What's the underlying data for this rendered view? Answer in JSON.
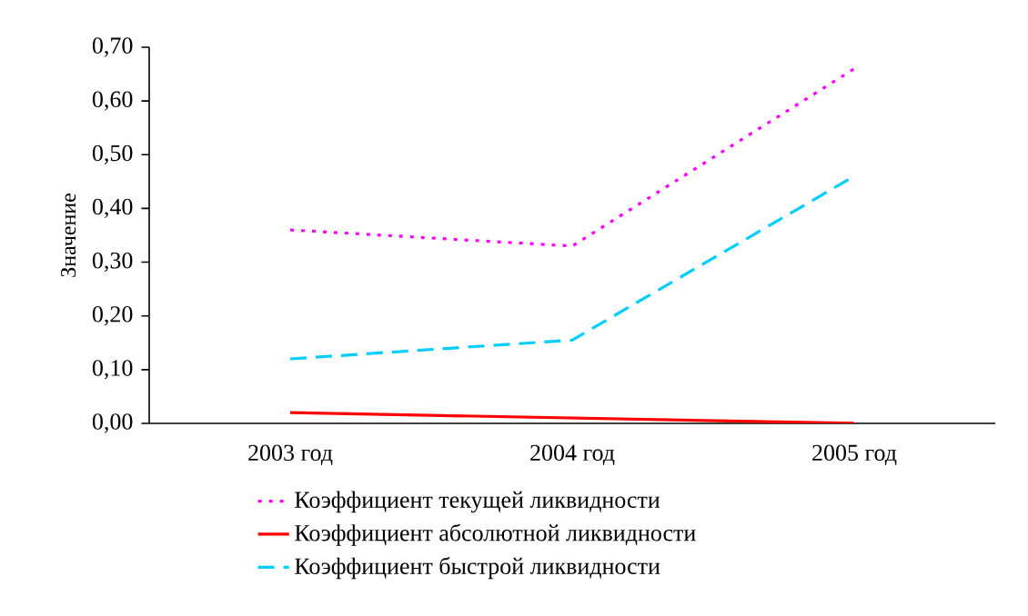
{
  "chart_data": {
    "type": "line",
    "ylabel": "Значение",
    "categories": [
      "2003 год",
      "2004 год",
      "2005 год"
    ],
    "series": [
      {
        "name": "Коэффициент текущей ликвидности",
        "color": "#ff00ff",
        "line_style": "dotted",
        "values": [
          0.36,
          0.33,
          0.66
        ]
      },
      {
        "name": "Коэффициент абсолютной ликвидности",
        "color": "#ff0000",
        "line_style": "solid",
        "values": [
          0.02,
          0.01,
          0.0
        ]
      },
      {
        "name": "Коэффициент быстрой ликвидности",
        "color": "#00ccff",
        "line_style": "dashed",
        "values": [
          0.12,
          0.155,
          0.46
        ]
      }
    ],
    "ylim": [
      0,
      0.7
    ],
    "yticks": [
      {
        "value": 0,
        "label": "0,00"
      },
      {
        "value": 0.1,
        "label": "0,10"
      },
      {
        "value": 0.2,
        "label": "0,20"
      },
      {
        "value": 0.3,
        "label": "0,30"
      },
      {
        "value": 0.4,
        "label": "0,40"
      },
      {
        "value": 0.5,
        "label": "0,50"
      },
      {
        "value": 0.6,
        "label": "0,60"
      },
      {
        "value": 0.7,
        "label": "0,70"
      }
    ],
    "grid": false,
    "legend": "bottom"
  }
}
